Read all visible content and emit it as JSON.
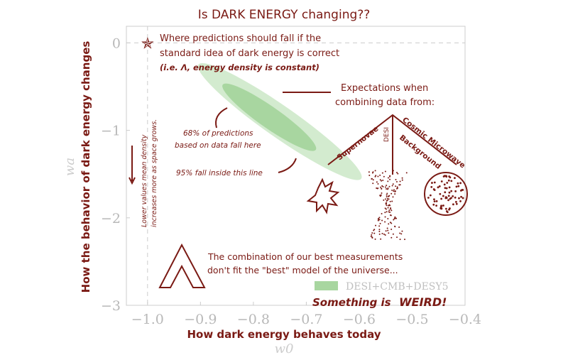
{
  "chart_data": {
    "type": "scatter",
    "title": "Is DARK ENERGY changing??",
    "xlabel": "How dark energy behaves today",
    "xlabel_symbol": "w0",
    "ylabel": "How the behavior of dark energy changes",
    "ylabel_symbol": "wa",
    "xlim": [
      -1.04,
      -0.4
    ],
    "ylim": [
      -3,
      0.19
    ],
    "xticks": [
      -1.0,
      -0.9,
      -0.8,
      -0.7,
      -0.6,
      -0.5,
      -0.4
    ],
    "xtick_labels": [
      "−1.0",
      "−0.9",
      "−0.8",
      "−0.7",
      "−0.6",
      "−0.5",
      "−0.4"
    ],
    "yticks": [
      0,
      -1,
      -2,
      -3
    ],
    "ytick_labels": [
      "0",
      "−1",
      "−2",
      "−3"
    ],
    "reference_point": {
      "w0": -1.0,
      "wa": 0,
      "marker": "star"
    },
    "contours": [
      {
        "level": "95%",
        "center": [
          -0.75,
          -0.9
        ],
        "color": "#d3ebcf"
      },
      {
        "level": "68%",
        "center": [
          -0.77,
          -0.85
        ],
        "color": "#a8d6a0"
      }
    ],
    "legend": {
      "label": "DESI+CMB+DESY5",
      "color": "#a8d6a0",
      "placement": "lower-right"
    },
    "colors": {
      "annotation": "#7a1a14",
      "axis": "#b8b8b8"
    }
  },
  "annotations": {
    "star_line1": "Where predictions should fall if the",
    "star_line2": "standard idea of dark energy is correct",
    "star_line3": "(i.e. Λ, energy density is constant)",
    "expect_line1": "Expectations when",
    "expect_line2": "combining data from:",
    "sn": "Supernovae",
    "desi": "DESI",
    "cmb1": "Cosmic Microwave",
    "cmb2": "Background",
    "p68_line1": "68% of predictions",
    "p68_line2": "based on data fall here",
    "p95": "95% fall inside this line",
    "lower_line1": "Lower values mean density",
    "lower_line2": "increases more as space grows.",
    "combo_line1": "The combination of our best measurements",
    "combo_line2": "don't fit the \"best\" model of the universe...",
    "weird1": "Something is",
    "weird2": "WEIRD!"
  }
}
